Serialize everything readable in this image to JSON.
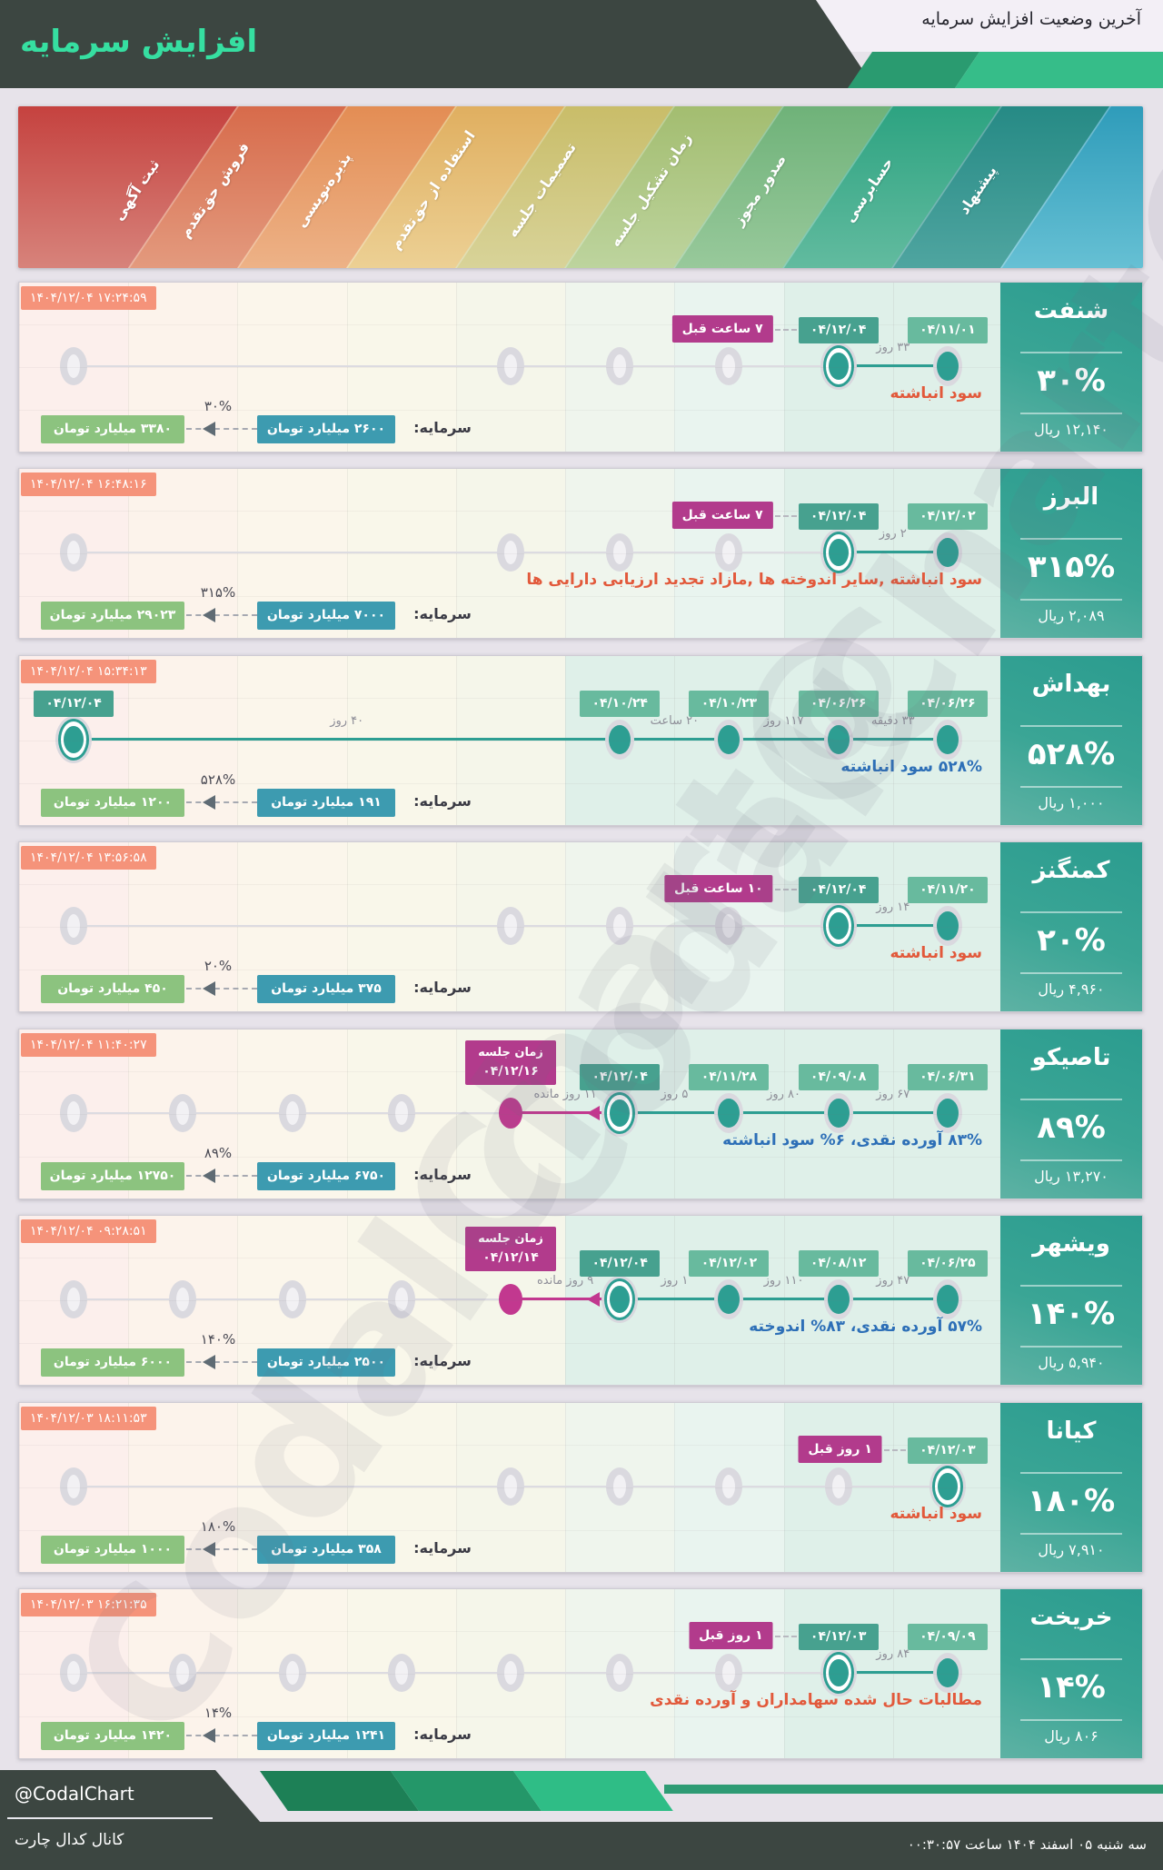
{
  "header": {
    "title": "افزایش سرمایه",
    "subtitle": "آخرین وضعیت افزایش سرمایه"
  },
  "watermark": "@CodalChart",
  "footer": {
    "handle": "@CodalChart",
    "channel": "کانال کدال چارت",
    "datetime": "سه شنبه ۰۵ اسفند ۱۴۰۴ ساعت ۰۰:۳۰:۵۷"
  },
  "colors": {
    "dark": "#3c4641",
    "title_green": "#36dfa1",
    "teal_dot": "#2d9e92",
    "magenta": "#b23b8c",
    "timestamp_badge": "#f5937a",
    "date_badge_dark": "#47a18f",
    "date_badge_light": "#68ba9e",
    "capital_current_badge": "#3d9bb0",
    "capital_new_badge": "#8cc37f",
    "annotation_red": "#e2593b",
    "annotation_blue": "#2d6fb7",
    "col_highlight": "#dff0e9",
    "col_tints": [
      "#fcefec",
      "#fcf3eb",
      "#fbf6eb",
      "#f9f7ea",
      "#f5f6ea",
      "#eff5ed",
      "#e9f4ef",
      "#e5f3ee",
      "#e8f5f1"
    ]
  },
  "stages": [
    {
      "label": "ثبت آگهی",
      "top": "#c5423f",
      "bottom": "#d7837b"
    },
    {
      "label": "فروش حق‌تقدم",
      "top": "#d76b4b",
      "bottom": "#e39a7e"
    },
    {
      "label": "پذیره‌نویسی",
      "top": "#e38d54",
      "bottom": "#edb287"
    },
    {
      "label": "استفاده از حق‌تقدم",
      "top": "#e0af60",
      "bottom": "#ecd094"
    },
    {
      "label": "تصمیمات جلسه",
      "top": "#c9bd69",
      "bottom": "#d8d399"
    },
    {
      "label": "زمان تشکیل جلسه",
      "top": "#a3bd70",
      "bottom": "#bdd49e"
    },
    {
      "label": "صدور مجوز",
      "top": "#6fb279",
      "bottom": "#98c99b"
    },
    {
      "label": "حسابرسی",
      "top": "#2da381",
      "bottom": "#62bb9f"
    },
    {
      "label": "پیشنهاد",
      "top": "#268a85",
      "bottom": "#4fa5a0"
    }
  ],
  "stage_tail": {
    "top": "#2f9cba",
    "bottom": "#66c0d4"
  },
  "rows": [
    {
      "name": "شنفت",
      "pct": "۳۰%",
      "price": "۱۲,۱۴۰ ریال",
      "timestamp": "۱۴۰۴/۱۲/۰۴ ۱۷:۲۴:۵۹",
      "annotation": {
        "text": "سود انباشته",
        "color": "red"
      },
      "capital": {
        "label": "سرمایه:",
        "from": "۲۶۰۰ میلیارد تومان",
        "to": "۳۳۸۰ میلیارد تومان",
        "pct": "۳۰%"
      },
      "events": [
        {
          "col": 8,
          "date": "۰۴/۱۲/۰۴",
          "variant": "dark",
          "ringed": true
        },
        {
          "col": 9,
          "date": "۰۴/۱۱/۰۱",
          "variant": "light",
          "ringed": false
        }
      ],
      "rel_badge": {
        "text": "۷ ساعت قبل",
        "col": 8
      },
      "durations": [
        {
          "a": 8,
          "b": 9,
          "label": "۳۳ روز"
        }
      ],
      "teal_line": [
        8,
        9
      ],
      "meeting": null,
      "placeholders": [
        1,
        5,
        6,
        7
      ],
      "highlight_cols": [
        8,
        9
      ]
    },
    {
      "name": "البرز",
      "pct": "۳۱۵%",
      "price": "۲,۰۸۹ ریال",
      "timestamp": "۱۴۰۴/۱۲/۰۴ ۱۶:۴۸:۱۶",
      "annotation": {
        "text": "سود انباشته ,سایر اندوخته ها ,مازاد تجدید ارزیابی دارایی ها",
        "color": "red"
      },
      "capital": {
        "label": "سرمایه:",
        "from": "۷۰۰۰ میلیارد تومان",
        "to": "۲۹۰۲۳ میلیارد تومان",
        "pct": "۳۱۵%"
      },
      "events": [
        {
          "col": 8,
          "date": "۰۴/۱۲/۰۴",
          "variant": "dark",
          "ringed": true
        },
        {
          "col": 9,
          "date": "۰۴/۱۲/۰۲",
          "variant": "light",
          "ringed": false
        }
      ],
      "rel_badge": {
        "text": "۷ ساعت قبل",
        "col": 8
      },
      "durations": [
        {
          "a": 8,
          "b": 9,
          "label": "۲ روز"
        }
      ],
      "teal_line": [
        8,
        9
      ],
      "meeting": null,
      "placeholders": [
        1,
        5,
        6,
        7
      ],
      "highlight_cols": [
        8,
        9
      ]
    },
    {
      "name": "بهداش",
      "pct": "۵۲۸%",
      "price": "۱,۰۰۰ ریال",
      "timestamp": "۱۴۰۴/۱۲/۰۴ ۱۵:۳۴:۱۳",
      "annotation": {
        "text": "۵۲۸% سود انباشته",
        "color": "blue"
      },
      "capital": {
        "label": "سرمایه:",
        "from": "۱۹۱ میلیارد تومان",
        "to": "۱۲۰۰ میلیارد تومان",
        "pct": "۵۲۸%"
      },
      "events": [
        {
          "col": 1,
          "date": "۰۴/۱۲/۰۴",
          "variant": "dark",
          "ringed": true
        },
        {
          "col": 6,
          "date": "۰۴/۱۰/۲۴",
          "variant": "light",
          "ringed": false
        },
        {
          "col": 7,
          "date": "۰۴/۱۰/۲۳",
          "variant": "light",
          "ringed": false
        },
        {
          "col": 8,
          "date": "۰۴/۰۶/۲۶",
          "variant": "light",
          "ringed": false
        },
        {
          "col": 9,
          "date": "۰۴/۰۶/۲۶",
          "variant": "light",
          "ringed": false
        }
      ],
      "rel_badge": null,
      "durations": [
        {
          "a": 1,
          "b": 6,
          "label": "۴۰ روز"
        },
        {
          "a": 6,
          "b": 7,
          "label": "۲۰ ساعت"
        },
        {
          "a": 7,
          "b": 8,
          "label": "۱۱۷ روز"
        },
        {
          "a": 8,
          "b": 9,
          "label": "۳۳ دقیقه"
        }
      ],
      "teal_line": [
        1,
        9
      ],
      "meeting": null,
      "placeholders": [],
      "highlight_cols": [
        6,
        7,
        8,
        9
      ]
    },
    {
      "name": "کمنگنز",
      "pct": "۲۰%",
      "price": "۴,۹۶۰ ریال",
      "timestamp": "۱۴۰۴/۱۲/۰۴ ۱۳:۵۶:۵۸",
      "annotation": {
        "text": "سود انباشته",
        "color": "red"
      },
      "capital": {
        "label": "سرمایه:",
        "from": "۳۷۵ میلیارد تومان",
        "to": "۴۵۰ میلیارد تومان",
        "pct": "۲۰%"
      },
      "events": [
        {
          "col": 8,
          "date": "۰۴/۱۲/۰۴",
          "variant": "dark",
          "ringed": true
        },
        {
          "col": 9,
          "date": "۰۴/۱۱/۲۰",
          "variant": "light",
          "ringed": false
        }
      ],
      "rel_badge": {
        "text": "۱۰ ساعت قبل",
        "col": 8
      },
      "durations": [
        {
          "a": 8,
          "b": 9,
          "label": "۱۴ روز"
        }
      ],
      "teal_line": [
        8,
        9
      ],
      "meeting": null,
      "placeholders": [
        1,
        5,
        6,
        7
      ],
      "highlight_cols": [
        8,
        9
      ]
    },
    {
      "name": "تاصیکو",
      "pct": "۸۹%",
      "price": "۱۳,۲۷۰ ریال",
      "timestamp": "۱۴۰۴/۱۲/۰۴ ۱۱:۴۰:۲۷",
      "annotation": {
        "text": "۸۳% آورده نقدی، ۶% سود انباشته",
        "color": "blue"
      },
      "capital": {
        "label": "سرمایه:",
        "from": "۶۷۵۰ میلیارد تومان",
        "to": "۱۲۷۵۰ میلیارد تومان",
        "pct": "۸۹%"
      },
      "events": [
        {
          "col": 6,
          "date": "۰۴/۱۲/۰۴",
          "variant": "dark",
          "ringed": true
        },
        {
          "col": 7,
          "date": "۰۴/۱۱/۲۸",
          "variant": "light",
          "ringed": false
        },
        {
          "col": 8,
          "date": "۰۴/۰۹/۰۸",
          "variant": "light",
          "ringed": false
        },
        {
          "col": 9,
          "date": "۰۴/۰۶/۳۱",
          "variant": "light",
          "ringed": false
        }
      ],
      "rel_badge": null,
      "durations": [
        {
          "a": 5,
          "b": 6,
          "label": "۱۱ روز مانده"
        },
        {
          "a": 6,
          "b": 7,
          "label": "۵ روز"
        },
        {
          "a": 7,
          "b": 8,
          "label": "۸۰ روز"
        },
        {
          "a": 8,
          "b": 9,
          "label": "۶۷ روز"
        }
      ],
      "teal_line": [
        6,
        9
      ],
      "meeting": {
        "col": 5,
        "to": 6,
        "line1": "زمان جلسه",
        "line2": "۰۴/۱۲/۱۶"
      },
      "placeholders": [
        1,
        2,
        3,
        4
      ],
      "highlight_cols": [
        6,
        7,
        8,
        9
      ]
    },
    {
      "name": "ویشهر",
      "pct": "۱۴۰%",
      "price": "۵,۹۴۰ ریال",
      "timestamp": "۱۴۰۴/۱۲/۰۴ ۰۹:۲۸:۵۱",
      "annotation": {
        "text": "۵۷% آورده نقدی، ۸۳% اندوخته",
        "color": "blue"
      },
      "capital": {
        "label": "سرمایه:",
        "from": "۲۵۰۰ میلیارد تومان",
        "to": "۶۰۰۰ میلیارد تومان",
        "pct": "۱۴۰%"
      },
      "events": [
        {
          "col": 6,
          "date": "۰۴/۱۲/۰۴",
          "variant": "dark",
          "ringed": true
        },
        {
          "col": 7,
          "date": "۰۴/۱۲/۰۲",
          "variant": "light",
          "ringed": false
        },
        {
          "col": 8,
          "date": "۰۴/۰۸/۱۲",
          "variant": "light",
          "ringed": false
        },
        {
          "col": 9,
          "date": "۰۴/۰۶/۲۵",
          "variant": "light",
          "ringed": false
        }
      ],
      "rel_badge": null,
      "durations": [
        {
          "a": 5,
          "b": 6,
          "label": "۹ روز مانده"
        },
        {
          "a": 6,
          "b": 7,
          "label": "۱ روز"
        },
        {
          "a": 7,
          "b": 8,
          "label": "۱۱۰ روز"
        },
        {
          "a": 8,
          "b": 9,
          "label": "۴۷ روز"
        }
      ],
      "teal_line": [
        6,
        9
      ],
      "meeting": {
        "col": 5,
        "to": 6,
        "line1": "زمان جلسه",
        "line2": "۰۴/۱۲/۱۴"
      },
      "placeholders": [
        1,
        2,
        3,
        4
      ],
      "highlight_cols": [
        6,
        7,
        8,
        9
      ]
    },
    {
      "name": "کیانا",
      "pct": "۱۸۰%",
      "price": "۷,۹۱۰ ریال",
      "timestamp": "۱۴۰۴/۱۲/۰۳ ۱۸:۱۱:۵۳",
      "annotation": {
        "text": "سود انباشته",
        "color": "red"
      },
      "capital": {
        "label": "سرمایه:",
        "from": "۳۵۸ میلیارد تومان",
        "to": "۱۰۰۰ میلیارد تومان",
        "pct": "۱۸۰%"
      },
      "events": [
        {
          "col": 9,
          "date": "۰۴/۱۲/۰۳",
          "variant": "light",
          "ringed": true
        }
      ],
      "rel_badge": {
        "text": "۱ روز قبل",
        "col": 9
      },
      "durations": [],
      "teal_line": null,
      "meeting": null,
      "placeholders": [
        1,
        5,
        6,
        7,
        8
      ],
      "highlight_cols": [
        8,
        9
      ]
    },
    {
      "name": "خریخت",
      "pct": "۱۴%",
      "price": "۸۰۶ ریال",
      "timestamp": "۱۴۰۴/۱۲/۰۳ ۱۶:۲۱:۳۵",
      "annotation": {
        "text": "مطالبات حال شده سهامداران و آورده نقدی",
        "color": "red"
      },
      "capital": {
        "label": "سرمایه:",
        "from": "۱۲۴۱ میلیارد تومان",
        "to": "۱۴۲۰ میلیارد تومان",
        "pct": "۱۴%"
      },
      "events": [
        {
          "col": 8,
          "date": "۰۴/۱۲/۰۳",
          "variant": "dark",
          "ringed": true
        },
        {
          "col": 9,
          "date": "۰۴/۰۹/۰۹",
          "variant": "light",
          "ringed": false
        }
      ],
      "rel_badge": {
        "text": "۱ روز قبل",
        "col": 8
      },
      "durations": [
        {
          "a": 8,
          "b": 9,
          "label": "۸۴ روز"
        }
      ],
      "teal_line": [
        8,
        9
      ],
      "meeting": null,
      "placeholders": [
        1,
        2,
        3,
        4,
        5,
        6,
        7
      ],
      "highlight_cols": [
        8,
        9
      ]
    }
  ],
  "chart_data": {
    "type": "table",
    "title": "آخرین وضعیت افزایش سرمایه",
    "stages_right_to_left": [
      "پیشنهاد",
      "حسابرسی",
      "صدور مجوز",
      "زمان تشکیل جلسه",
      "تصمیمات جلسه",
      "استفاده از حق‌تقدم",
      "پذیره‌نویسی",
      "فروش حق‌تقدم",
      "ثبت آگهی"
    ],
    "columns": [
      "شرکت",
      "درصد افزایش",
      "قیمت (ریال)",
      "سرمایه فعلی (میلیارد تومان)",
      "سرمایه جدید (میلیارد تومان)",
      "محل تامین",
      "آخرین بروزرسانی"
    ],
    "rows": [
      [
        "شنفت",
        "۳۰%",
        "۱۲,۱۴۰",
        "۲۶۰۰",
        "۳۳۸۰",
        "سود انباشته",
        "۱۴۰۴/۱۲/۰۴ ۱۷:۲۴:۵۹"
      ],
      [
        "البرز",
        "۳۱۵%",
        "۲,۰۸۹",
        "۷۰۰۰",
        "۲۹۰۲۳",
        "سود انباشته ,سایر اندوخته ها ,مازاد تجدید ارزیابی دارایی ها",
        "۱۴۰۴/۱۲/۰۴ ۱۶:۴۸:۱۶"
      ],
      [
        "بهداش",
        "۵۲۸%",
        "۱,۰۰۰",
        "۱۹۱",
        "۱۲۰۰",
        "۵۲۸% سود انباشته",
        "۱۴۰۴/۱۲/۰۴ ۱۵:۳۴:۱۳"
      ],
      [
        "کمنگنز",
        "۲۰%",
        "۴,۹۶۰",
        "۳۷۵",
        "۴۵۰",
        "سود انباشته",
        "۱۴۰۴/۱۲/۰۴ ۱۳:۵۶:۵۸"
      ],
      [
        "تاصیکو",
        "۸۹%",
        "۱۳,۲۷۰",
        "۶۷۵۰",
        "۱۲۷۵۰",
        "۸۳% آورده نقدی، ۶% سود انباشته",
        "۱۴۰۴/۱۲/۰۴ ۱۱:۴۰:۲۷"
      ],
      [
        "ویشهر",
        "۱۴۰%",
        "۵,۹۴۰",
        "۲۵۰۰",
        "۶۰۰۰",
        "۵۷% آورده نقدی، ۸۳% اندوخته",
        "۱۴۰۴/۱۲/۰۴ ۰۹:۲۸:۵۱"
      ],
      [
        "کیانا",
        "۱۸۰%",
        "۷,۹۱۰",
        "۳۵۸",
        "۱۰۰۰",
        "سود انباشته",
        "۱۴۰۴/۱۲/۰۳ ۱۸:۱۱:۵۳"
      ],
      [
        "خریخت",
        "۱۴%",
        "۸۰۶",
        "۱۲۴۱",
        "۱۴۲۰",
        "مطالبات حال شده سهامداران و آورده نقدی",
        "۱۴۰۴/۱۲/۰۳ ۱۶:۲۱:۳۵"
      ]
    ]
  }
}
